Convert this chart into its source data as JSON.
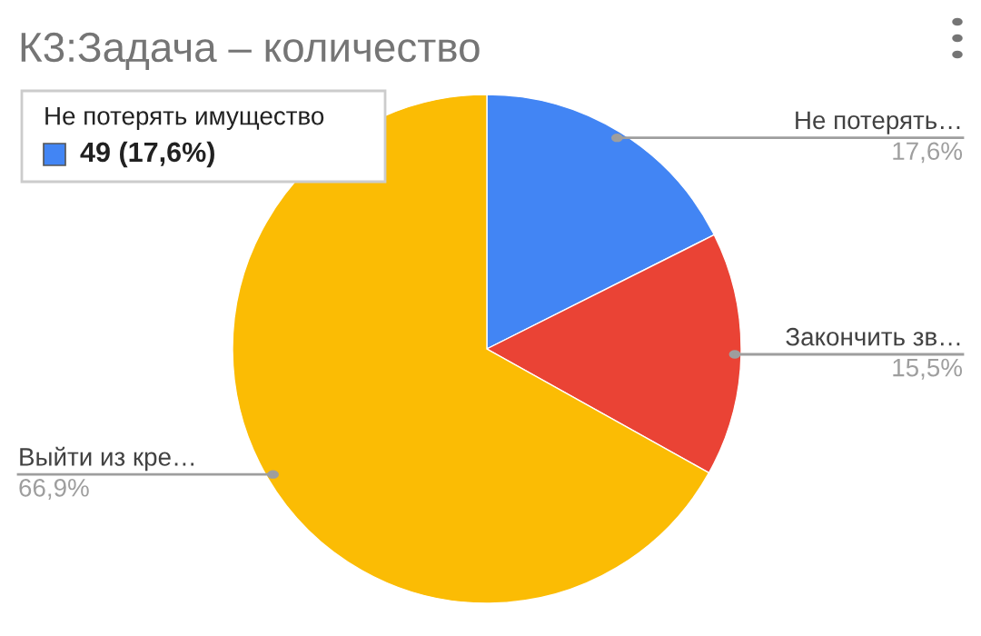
{
  "chart_data": {
    "type": "pie",
    "title": "К3:Задача – количество",
    "categories": [
      "Не потерять…",
      "Закончить зв…",
      "Выйти из кре…"
    ],
    "values": [
      17.6,
      15.5,
      66.9
    ],
    "colors": [
      "#4285f4",
      "#ea4335",
      "#fbbc04"
    ],
    "value_labels": [
      "17,6%",
      "15,5%",
      "66,9%"
    ],
    "annotations": [
      "Не потерять имущество",
      "49 (17,6%)"
    ],
    "legend": false
  }
}
